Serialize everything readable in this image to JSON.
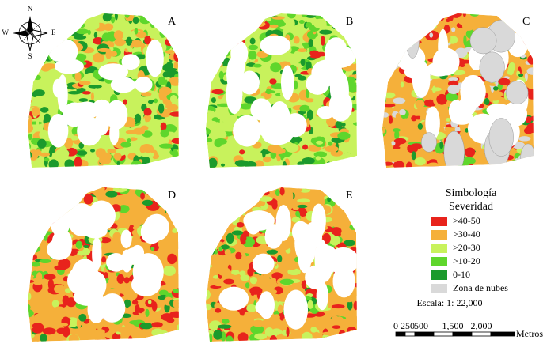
{
  "panels": [
    {
      "label": "A"
    },
    {
      "label": "B"
    },
    {
      "label": "C"
    },
    {
      "label": "D"
    },
    {
      "label": "E"
    }
  ],
  "compass": {
    "north": "N",
    "south": "S",
    "east": "E",
    "west": "W"
  },
  "legend": {
    "title": "Simbología",
    "subtitle": "Severidad",
    "items": [
      {
        "label": ">40-50",
        "color": "#e8231c"
      },
      {
        "label": ">30-40",
        "color": "#f5b03a"
      },
      {
        "label": ">20-30",
        "color": "#c8f25c"
      },
      {
        "label": ">10-20",
        "color": "#5fd62c"
      },
      {
        "label": "0-10",
        "color": "#1b9a2c"
      },
      {
        "label": "Zona de nubes",
        "color": "#d9d9d9"
      }
    ]
  },
  "scale": {
    "text": "Escala: 1: 22,000",
    "ticks": [
      "0",
      "250",
      "500",
      "1,500",
      "2,000"
    ],
    "unit": "Metros"
  }
}
